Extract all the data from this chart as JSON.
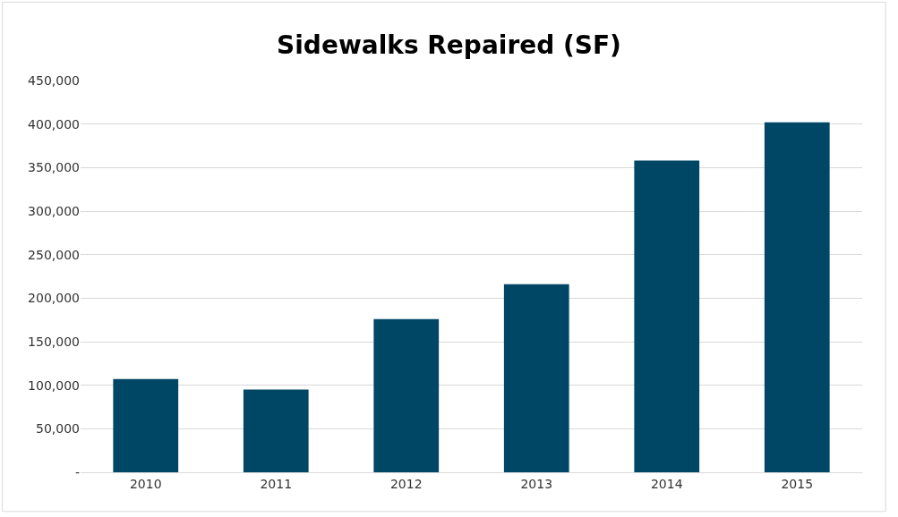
{
  "chart_data": {
    "type": "bar",
    "title": "Sidewalks Repaired (SF)",
    "categories": [
      "2010",
      "2011",
      "2012",
      "2013",
      "2014",
      "2015"
    ],
    "values": [
      107000,
      95000,
      176000,
      216000,
      358000,
      402000
    ],
    "color": "#004766",
    "ylim": [
      0,
      450000
    ],
    "yticks": [
      {
        "value": 0,
        "label": "-"
      },
      {
        "value": 50000,
        "label": "50,000"
      },
      {
        "value": 100000,
        "label": "100,000"
      },
      {
        "value": 150000,
        "label": "150,000"
      },
      {
        "value": 200000,
        "label": "200,000"
      },
      {
        "value": 250000,
        "label": "250,000"
      },
      {
        "value": 300000,
        "label": "300,000"
      },
      {
        "value": 350000,
        "label": "350,000"
      },
      {
        "value": 400000,
        "label": "400,000"
      },
      {
        "value": 450000,
        "label": "450,000"
      }
    ],
    "grid": "y"
  }
}
